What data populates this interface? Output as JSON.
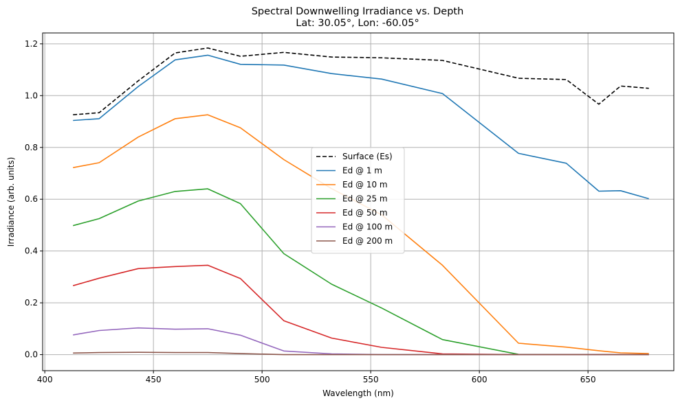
{
  "chart_data": {
    "type": "line",
    "title": "Spectral Downwelling Irradiance vs. Depth",
    "subtitle": "Lat: 30.05°, Lon: -60.05°",
    "xlabel": "Wavelength (nm)",
    "ylabel": "Irradiance (arb. units)",
    "xlim": [
      399,
      689.5
    ],
    "ylim": [
      -0.062,
      1.242
    ],
    "xticks": [
      400,
      450,
      500,
      550,
      600,
      650
    ],
    "yticks": [
      0.0,
      0.2,
      0.4,
      0.6,
      0.8,
      1.0,
      1.2
    ],
    "xtick_labels": [
      "400",
      "450",
      "500",
      "550",
      "600",
      "650"
    ],
    "ytick_labels": [
      "0.0",
      "0.2",
      "0.4",
      "0.6",
      "0.8",
      "1.0",
      "1.2"
    ],
    "grid": true,
    "legend_position": "center",
    "x": [
      413,
      425,
      443,
      460,
      475,
      490,
      510,
      532,
      555,
      583,
      618,
      640,
      655,
      665,
      678
    ],
    "series": [
      {
        "name": "Surface (Es)",
        "color": "#000000",
        "dash": "dashed",
        "values": [
          0.926,
          0.934,
          1.057,
          1.165,
          1.184,
          1.152,
          1.167,
          1.149,
          1.146,
          1.136,
          1.067,
          1.062,
          0.967,
          1.037,
          1.028
        ]
      },
      {
        "name": "Ed @ 1 m",
        "color": "#1f77b4",
        "dash": "solid",
        "values": [
          0.904,
          0.911,
          1.035,
          1.138,
          1.156,
          1.121,
          1.118,
          1.085,
          1.064,
          1.008,
          0.777,
          0.739,
          0.631,
          0.633,
          0.602
        ]
      },
      {
        "name": "Ed @ 10 m",
        "color": "#ff7f0e",
        "dash": "solid",
        "values": [
          0.722,
          0.741,
          0.84,
          0.911,
          0.926,
          0.876,
          0.753,
          0.641,
          0.54,
          0.345,
          0.044,
          0.029,
          0.015,
          0.007,
          0.004
        ]
      },
      {
        "name": "Ed @ 25 m",
        "color": "#2ca02c",
        "dash": "solid",
        "values": [
          0.498,
          0.525,
          0.593,
          0.63,
          0.64,
          0.583,
          0.39,
          0.272,
          0.18,
          0.058,
          0.001,
          0.0,
          0.0,
          0.0,
          0.0
        ]
      },
      {
        "name": "Ed @ 50 m",
        "color": "#d62728",
        "dash": "solid",
        "values": [
          0.266,
          0.295,
          0.332,
          0.34,
          0.345,
          0.294,
          0.131,
          0.064,
          0.028,
          0.003,
          0.0,
          0.0,
          0.0,
          0.0,
          0.0
        ]
      },
      {
        "name": "Ed @ 100 m",
        "color": "#9467bd",
        "dash": "solid",
        "values": [
          0.076,
          0.093,
          0.103,
          0.098,
          0.1,
          0.075,
          0.014,
          0.003,
          0.0,
          0.0,
          0.0,
          0.0,
          0.0,
          0.0,
          0.0
        ]
      },
      {
        "name": "Ed @ 200 m",
        "color": "#8c564b",
        "dash": "solid",
        "values": [
          0.006,
          0.008,
          0.009,
          0.008,
          0.008,
          0.004,
          0.0,
          0.0,
          0.0,
          0.0,
          0.0,
          0.0,
          0.0,
          0.0,
          0.0
        ]
      }
    ]
  }
}
